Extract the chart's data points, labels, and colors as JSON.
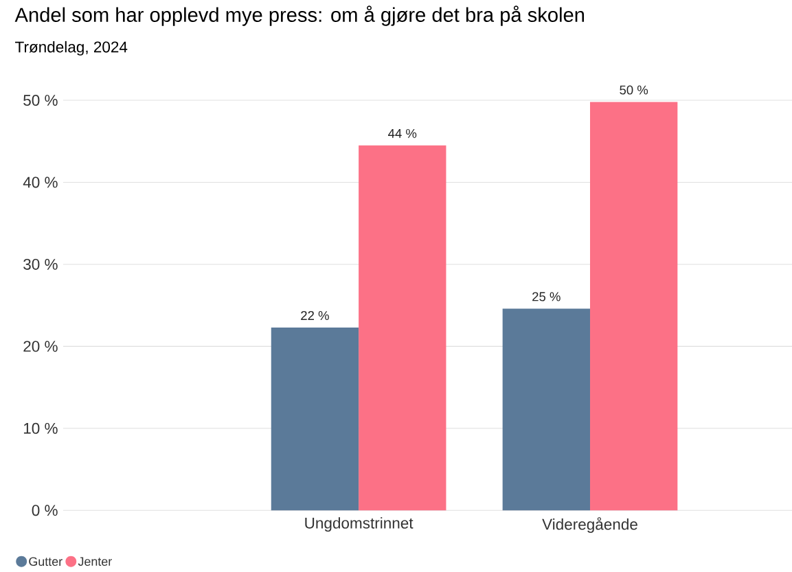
{
  "chart_data": {
    "type": "bar",
    "title": "Andel som har opplevd mye press: om å gjøre det bra på skolen",
    "subtitle": "Trøndelag, 2024",
    "categories": [
      null,
      "Ungdomstrinnet",
      "Videregående"
    ],
    "series": [
      {
        "name": "Gutter",
        "color": "#5b7a99",
        "values": [
          null,
          22.3,
          24.6
        ],
        "value_labels": [
          null,
          "22 %",
          "25 %"
        ]
      },
      {
        "name": "Jenter",
        "color": "#fc7186",
        "values": [
          null,
          44.5,
          49.8
        ],
        "value_labels": [
          null,
          "44 %",
          "50 %"
        ]
      }
    ],
    "ylim": [
      0,
      50
    ],
    "yticks": [
      {
        "value": 0,
        "label": "0 %"
      },
      {
        "value": 10,
        "label": "10 %"
      },
      {
        "value": 20,
        "label": "20 %"
      },
      {
        "value": 30,
        "label": "30 %"
      },
      {
        "value": 40,
        "label": "40 %"
      },
      {
        "value": 50,
        "label": "50 %"
      }
    ],
    "grid": "y",
    "legend": "bottom left"
  }
}
